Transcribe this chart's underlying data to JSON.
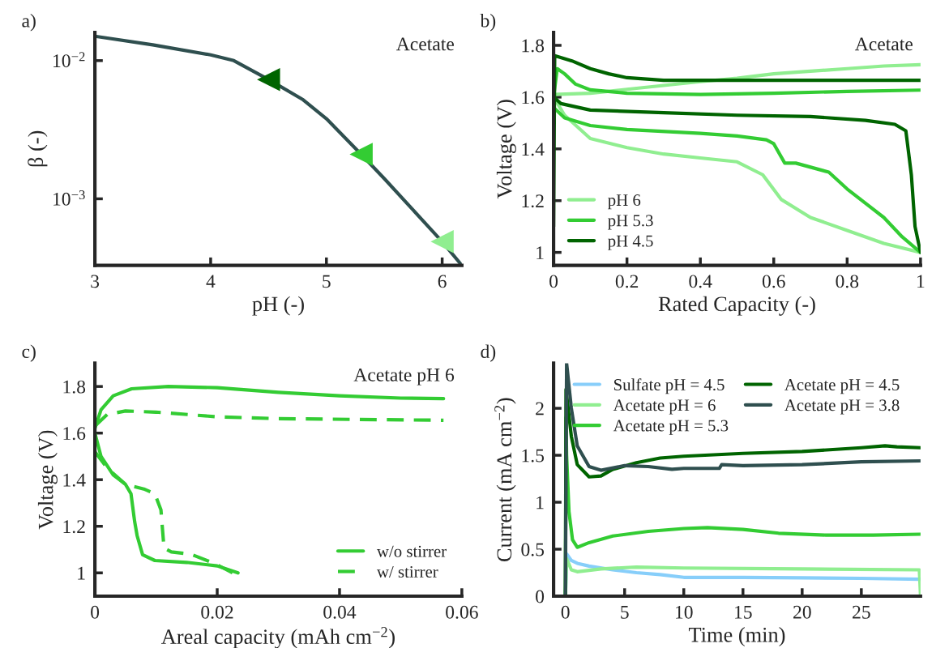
{
  "chart_data": [
    {
      "type": "line",
      "xlabel": "pH (-)",
      "ylabel": "β (-)",
      "annotations": [
        "a)",
        "Acetate"
      ],
      "log": "y",
      "xlim": [
        3,
        6.17
      ],
      "xticks": [
        3,
        4,
        5,
        6
      ],
      "ylim": [
        0.00033,
        0.016
      ],
      "yticks": [
        {
          "value": 0.01,
          "label": "10$^{−2}$"
        },
        {
          "value": 0.001,
          "label": "10$^{−3}$"
        }
      ],
      "grid": false,
      "legend": false,
      "series": [
        {
          "color": "#2f4f4f",
          "x": [
            3,
            3.5,
            4,
            4.2,
            4.5,
            4.8,
            5,
            5.3,
            5.5,
            6,
            6.17
          ],
          "values": [
            0.015,
            0.013,
            0.011,
            0.01,
            0.0073,
            0.0052,
            0.0038,
            0.0021,
            0.0014,
            0.00049,
            0.00033
          ]
        },
        {
          "type": "scatter",
          "marker": "triangle",
          "colors": [
            "#006400",
            "#33cc33",
            "#90ee90"
          ],
          "x": [
            4.5,
            5.3,
            6
          ],
          "values": [
            0.0073,
            0.0021,
            0.00049
          ]
        }
      ]
    },
    {
      "type": "line",
      "xlabel": "Rated Capacity (-)",
      "ylabel": "Voltage (V)",
      "annotations": [
        "b)",
        "Acetate"
      ],
      "xlim": [
        0,
        1
      ],
      "xticks": [
        0,
        0.2,
        0.4,
        0.6,
        0.8,
        1
      ],
      "ylim": [
        0.95,
        1.85
      ],
      "yticks": [
        1,
        1.2,
        1.4,
        1.6,
        1.8
      ],
      "grid": false,
      "legend": "bottom left",
      "series": [
        {
          "name": "pH 6",
          "color": "#90ee90",
          "x": [
            0,
            0.1,
            0.2,
            0.3,
            0.4,
            0.5,
            0.6,
            0.7,
            0.8,
            0.9,
            1
          ],
          "values": [
            1.61,
            1.615,
            1.63,
            1.645,
            1.66,
            1.673,
            1.69,
            1.7,
            1.71,
            1.72,
            1.725
          ]
        },
        {
          "color": "#90ee90",
          "x": [
            0,
            0.03,
            0.1,
            0.2,
            0.3,
            0.4,
            0.5,
            0.57,
            0.62,
            0.7,
            0.8,
            0.9,
            1
          ],
          "values": [
            1.6,
            1.53,
            1.44,
            1.405,
            1.38,
            1.365,
            1.35,
            1.3,
            1.205,
            1.135,
            1.085,
            1.035,
            1.0
          ]
        },
        {
          "name": "pH 5.3",
          "color": "#33cc33",
          "x": [
            0,
            0.01,
            0.03,
            0.06,
            0.1,
            0.2,
            0.4,
            0.6,
            0.8,
            1
          ],
          "values": [
            1.6,
            1.71,
            1.69,
            1.65,
            1.628,
            1.615,
            1.61,
            1.615,
            1.622,
            1.627
          ]
        },
        {
          "color": "#33cc33",
          "x": [
            0,
            0.03,
            0.1,
            0.2,
            0.4,
            0.5,
            0.58,
            0.6,
            0.63,
            0.66,
            0.75,
            0.8,
            0.9,
            0.95,
            1
          ],
          "values": [
            1.56,
            1.52,
            1.49,
            1.475,
            1.46,
            1.45,
            1.435,
            1.42,
            1.345,
            1.345,
            1.31,
            1.245,
            1.135,
            1.06,
            1.0
          ]
        },
        {
          "name": "pH 4.5",
          "color": "#006400",
          "x": [
            0,
            0.003,
            0.05,
            0.1,
            0.15,
            0.2,
            0.3,
            1
          ],
          "values": [
            1.1,
            1.76,
            1.74,
            1.71,
            1.69,
            1.675,
            1.665,
            1.665
          ]
        },
        {
          "color": "#006400",
          "x": [
            0,
            0.02,
            0.1,
            0.3,
            0.5,
            0.7,
            0.85,
            0.93,
            0.96,
            0.975,
            0.985,
            1
          ],
          "values": [
            1.6,
            1.575,
            1.55,
            1.54,
            1.53,
            1.525,
            1.51,
            1.495,
            1.47,
            1.3,
            1.1,
            1.0
          ]
        }
      ]
    },
    {
      "type": "line",
      "xlabel": "Areal capacity (mAh cm$^{−2}$)",
      "ylabel": "Voltage (V)",
      "annotations": [
        "c)",
        "Acetate pH 6"
      ],
      "xlim": [
        0,
        0.06
      ],
      "xticks": [
        0,
        0.02,
        0.04,
        0.06
      ],
      "ylim": [
        0.9,
        1.9
      ],
      "yticks": [
        1,
        1.2,
        1.4,
        1.6,
        1.8
      ],
      "grid": false,
      "legend": "bottom right",
      "series": [
        {
          "name": "w/o stirrer",
          "color": "#33cc33",
          "line_style": "solid",
          "x": [
            0,
            0.001,
            0.003,
            0.006,
            0.012,
            0.02,
            0.03,
            0.04,
            0.05,
            0.057
          ],
          "values": [
            1.62,
            1.7,
            1.76,
            1.79,
            1.8,
            1.795,
            1.775,
            1.76,
            1.75,
            1.748
          ]
        },
        {
          "color": "#33cc33",
          "line_style": "solid",
          "x": [
            0,
            0.001,
            0.003,
            0.005,
            0.0059,
            0.0065,
            0.0069,
            0.0078,
            0.0098,
            0.015,
            0.02,
            0.0234
          ],
          "values": [
            1.6,
            1.5,
            1.42,
            1.38,
            1.34,
            1.22,
            1.16,
            1.078,
            1.053,
            1.045,
            1.03,
            1.0
          ]
        },
        {
          "name": "w/ stirrer",
          "color": "#33cc33",
          "line_style": "dashed",
          "x": [
            0,
            0.002,
            0.005,
            0.01,
            0.02,
            0.03,
            0.057
          ],
          "values": [
            1.63,
            1.68,
            1.695,
            1.69,
            1.67,
            1.662,
            1.655
          ]
        },
        {
          "color": "#33cc33",
          "line_style": "dashed",
          "x": [
            0,
            0.002,
            0.005,
            0.008,
            0.0098,
            0.0108,
            0.0113,
            0.0125,
            0.0157,
            0.0196,
            0.0225
          ],
          "values": [
            1.52,
            1.45,
            1.38,
            1.36,
            1.34,
            1.27,
            1.106,
            1.09,
            1.08,
            1.04,
            1.0
          ]
        }
      ]
    },
    {
      "type": "line",
      "xlabel": "Time (min)",
      "ylabel": "Current (mA cm$^{−2}$)",
      "annotations": [
        "d)"
      ],
      "xlim": [
        -1,
        30
      ],
      "xticks": [
        0,
        5,
        10,
        15,
        20,
        25
      ],
      "ylim": [
        0,
        2.48
      ],
      "yticks": [
        0,
        0.5,
        1,
        1.5,
        2
      ],
      "grid": false,
      "legend": "top",
      "series": [
        {
          "name": "Sulfate pH = 4.5",
          "color": "#87cefa",
          "x": [
            0,
            0.1,
            0.5,
            1,
            2,
            4,
            6,
            8,
            10,
            15,
            20,
            25,
            30
          ],
          "values": [
            0,
            0.45,
            0.38,
            0.35,
            0.32,
            0.28,
            0.25,
            0.23,
            0.2,
            0.2,
            0.195,
            0.19,
            0.18
          ]
        },
        {
          "name": "Acetate pH = 6",
          "color": "#90ee90",
          "x": [
            0,
            0.1,
            0.5,
            1,
            3,
            6,
            10,
            20,
            29.9,
            30
          ],
          "values": [
            0,
            0.4,
            0.28,
            0.26,
            0.29,
            0.31,
            0.3,
            0.29,
            0.28,
            0
          ]
        },
        {
          "name": "Acetate pH = 5.3",
          "color": "#33cc33",
          "x": [
            0,
            0.05,
            0.1,
            0.3,
            0.6,
            1,
            2,
            4,
            7,
            10,
            12,
            15,
            18,
            22,
            26,
            30
          ],
          "values": [
            0,
            1.9,
            1.5,
            0.9,
            0.6,
            0.52,
            0.57,
            0.64,
            0.69,
            0.72,
            0.73,
            0.71,
            0.67,
            0.65,
            0.65,
            0.66
          ]
        },
        {
          "name": "Acetate pH = 4.5",
          "color": "#006400",
          "x": [
            0,
            0.05,
            0.5,
            1,
            2,
            3,
            4,
            6,
            8,
            10,
            15,
            20,
            25,
            27,
            28,
            30
          ],
          "values": [
            0,
            2.2,
            1.7,
            1.4,
            1.27,
            1.28,
            1.35,
            1.42,
            1.47,
            1.49,
            1.52,
            1.54,
            1.58,
            1.6,
            1.59,
            1.58
          ]
        },
        {
          "name": "Acetate pH = 3.8",
          "color": "#2f4f4f",
          "x": [
            0,
            0.1,
            0.5,
            1,
            2,
            3,
            5,
            7,
            9,
            10,
            13,
            13.2,
            15,
            20,
            25,
            30
          ],
          "values": [
            0,
            2.48,
            2.0,
            1.6,
            1.38,
            1.34,
            1.39,
            1.38,
            1.35,
            1.36,
            1.36,
            1.4,
            1.39,
            1.4,
            1.43,
            1.44
          ]
        }
      ]
    }
  ]
}
